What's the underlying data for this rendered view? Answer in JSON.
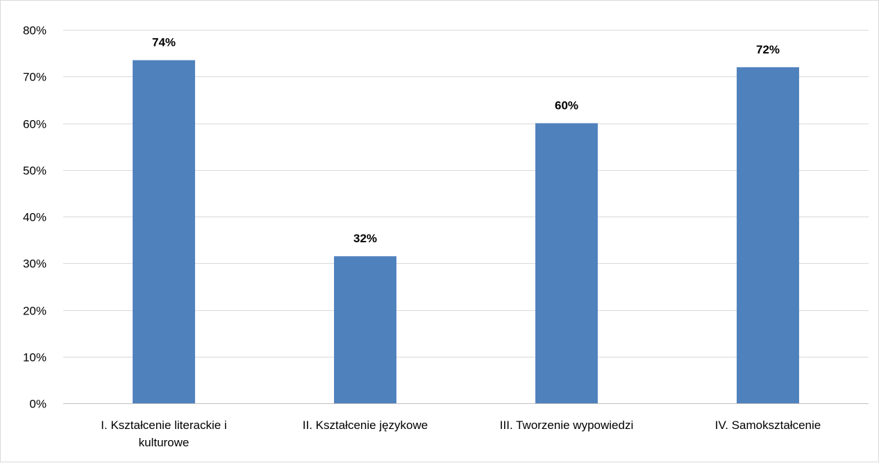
{
  "chart_data": {
    "type": "bar",
    "title": "",
    "xlabel": "",
    "ylabel": "",
    "categories": [
      [
        "I. Kształcenie literackie i",
        "kulturowe"
      ],
      [
        "II. Kształcenie językowe"
      ],
      [
        "III. Tworzenie wypowiedzi"
      ],
      [
        "IV. Samokształcenie"
      ]
    ],
    "values": [
      73.5,
      31.5,
      60,
      72
    ],
    "data_labels": [
      "74%",
      "32%",
      "60%",
      "72%"
    ],
    "ylim": [
      0,
      80
    ],
    "yticks": [
      0,
      10,
      20,
      30,
      40,
      50,
      60,
      70,
      80
    ],
    "ytick_labels": [
      "0%",
      "10%",
      "20%",
      "30%",
      "40%",
      "50%",
      "60%",
      "70%",
      "80%"
    ],
    "grid": true,
    "legend": "none",
    "colors": {
      "bar": "#4f81bd",
      "grid": "#d9d9d9",
      "axis": "#bfbfbf",
      "text": "#000000"
    }
  }
}
